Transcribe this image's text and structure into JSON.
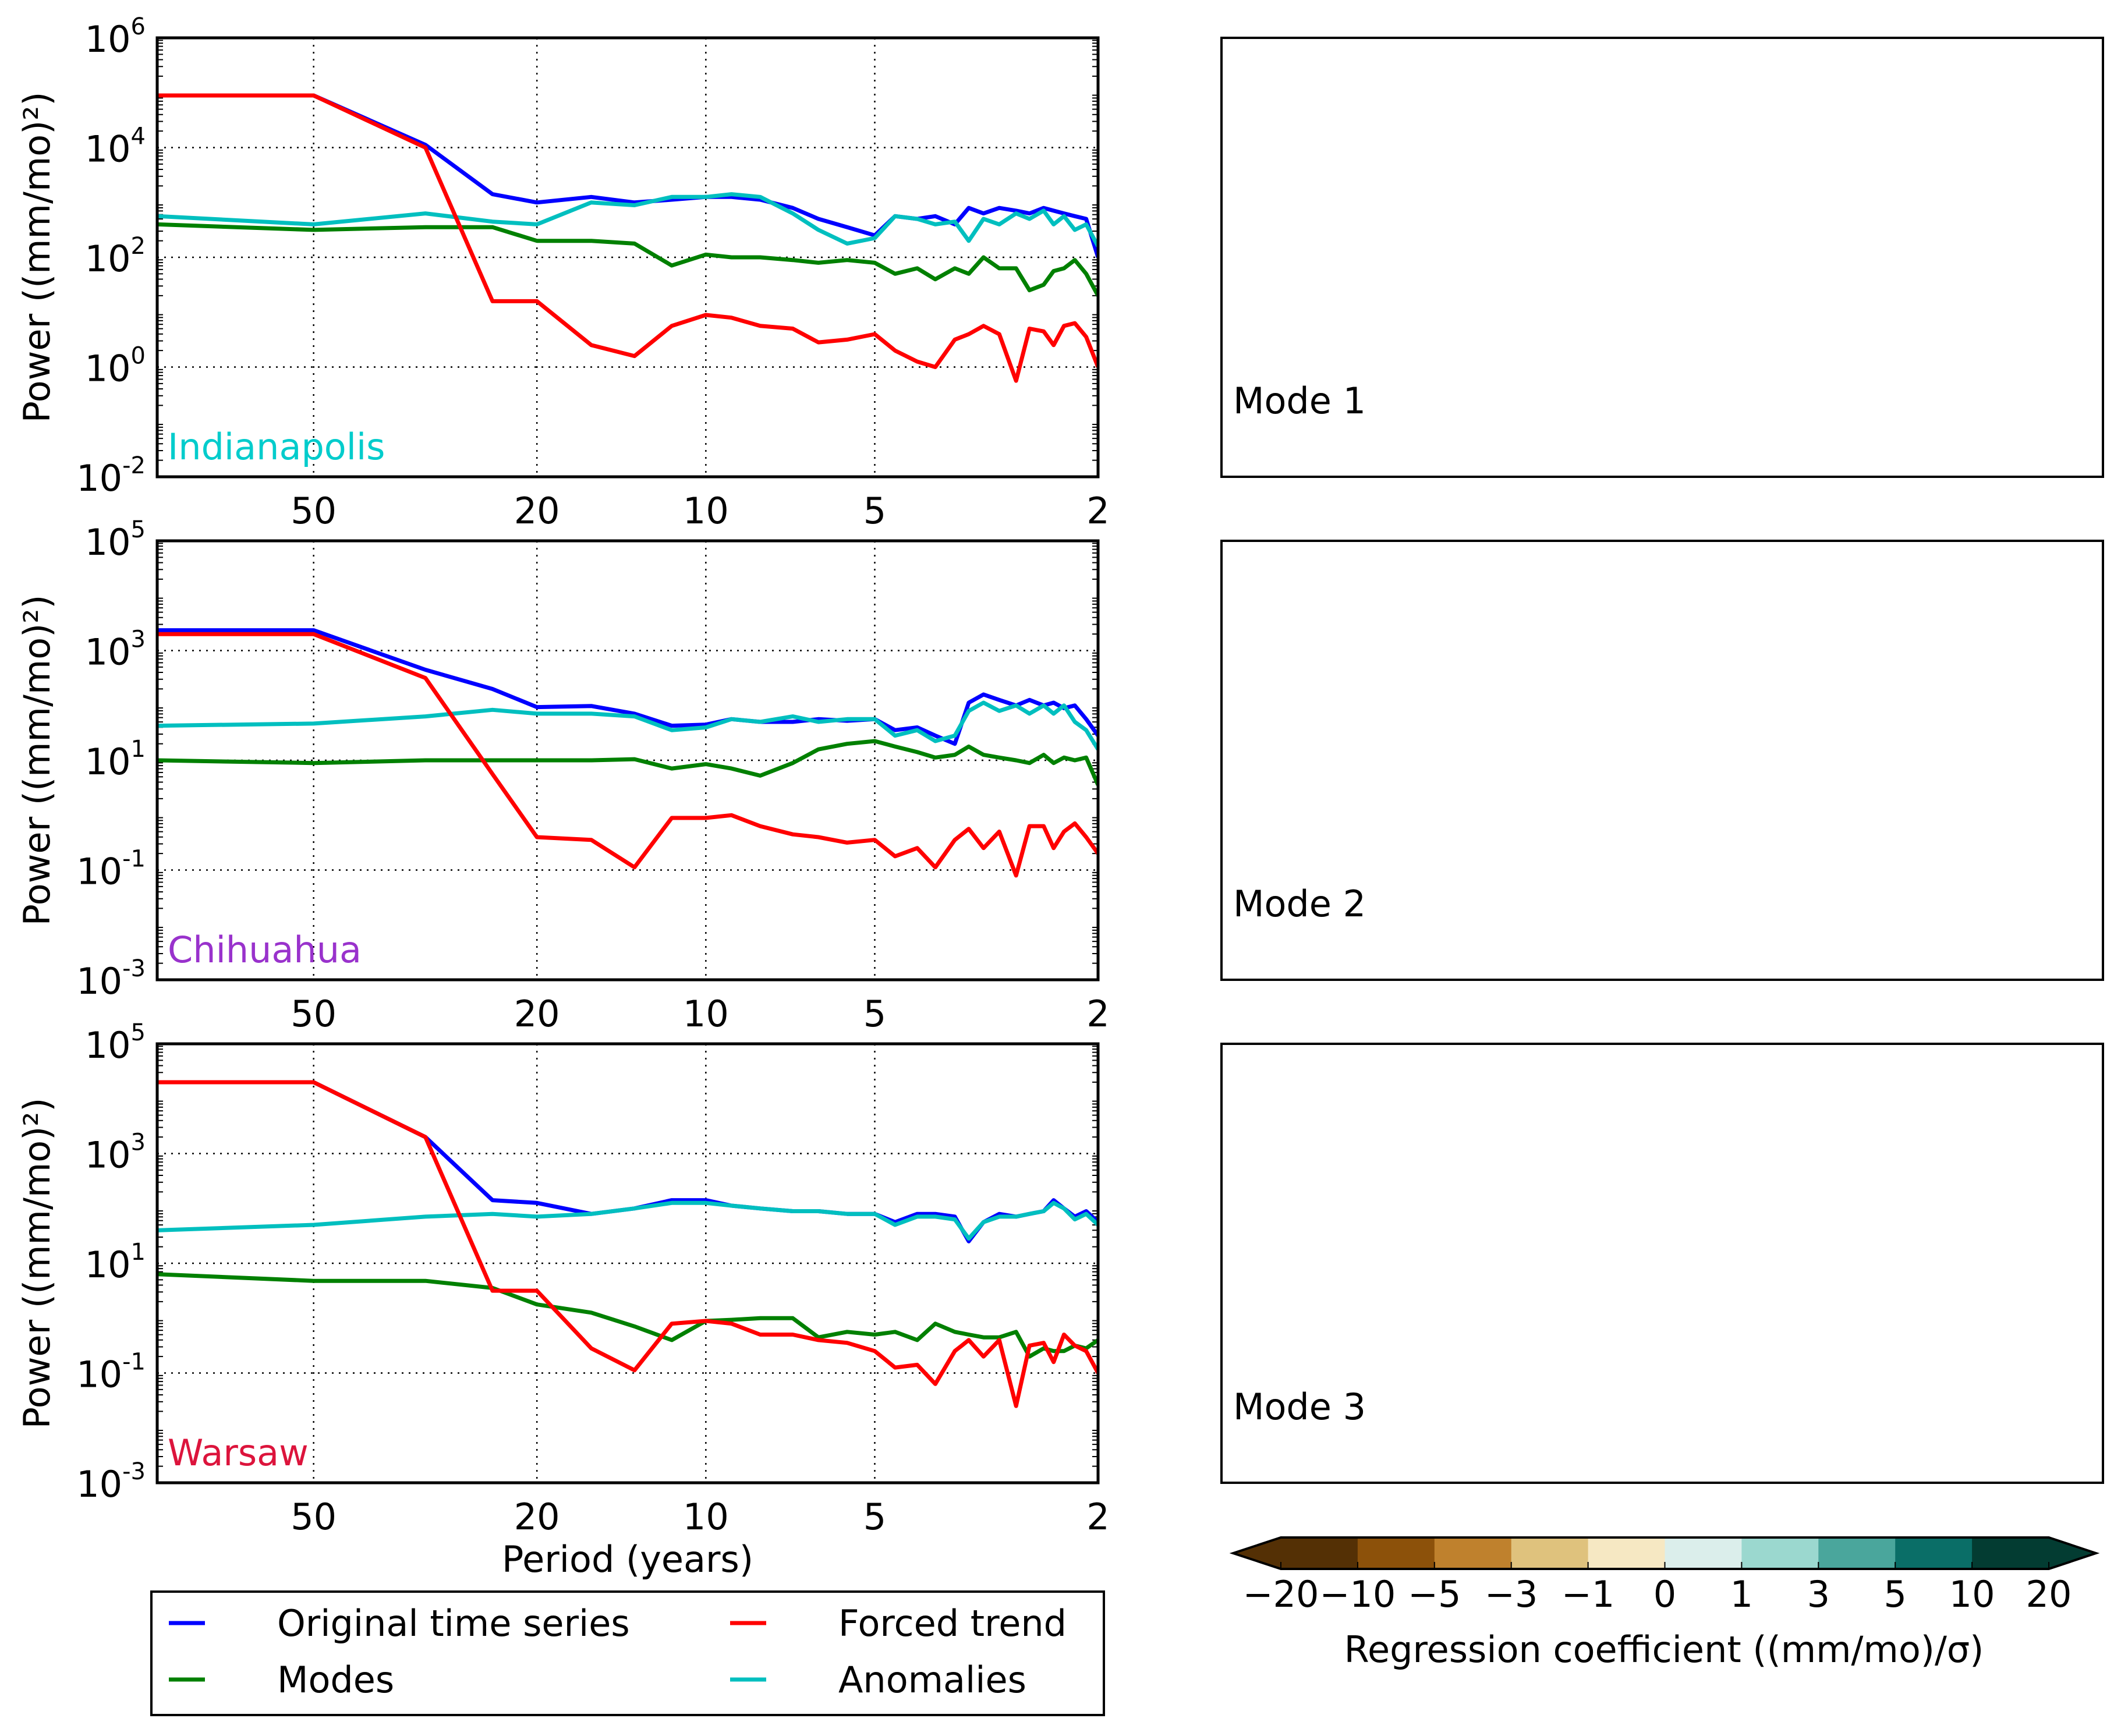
{
  "tick_base": "10",
  "xlabel": "Period (years)",
  "legend": [
    {
      "label": "Original time series",
      "color": "#0000ff"
    },
    {
      "label": "Forced trend",
      "color": "#ff0000"
    },
    {
      "label": "Modes",
      "color": "#008000"
    },
    {
      "label": "Anomalies",
      "color": "#00bfbf"
    }
  ],
  "maps": [
    {
      "label": "Mode 1"
    },
    {
      "label": "Mode 2"
    },
    {
      "label": "Mode 3"
    }
  ],
  "stars": {
    "Warsaw": "#dc143c",
    "Indianapolis": "#00ced1",
    "Chihuahua": "#9932cc"
  },
  "colorbar": {
    "label": "Regression coefficient ((mm/mo)/σ)",
    "ticks": [
      "−20",
      "−10",
      "−5",
      "−3",
      "−1",
      "0",
      "1",
      "3",
      "5",
      "10",
      "20"
    ],
    "colors": [
      "#543005",
      "#8c510a",
      "#bf812d",
      "#dfc27d",
      "#f6e8c3",
      "#dbeeeb",
      "#9bd8cf",
      "#4aa69c",
      "#0a6e67",
      "#033c32"
    ]
  },
  "chart_data": [
    {
      "type": "line",
      "title": "Indianapolis",
      "title_color": "#00cccc",
      "xlabel": "Period (years)",
      "ylabel": "Power ((mm/mo)²)",
      "xscale": "log",
      "yscale": "log",
      "xlim": [
        95,
        2
      ],
      "ylim_log10": [
        -2,
        6
      ],
      "xticks": [
        "50",
        "20",
        "10",
        "5",
        "2"
      ],
      "yticks_exp": [
        "6",
        "4",
        "2",
        "0",
        "-2"
      ],
      "x": [
        95,
        50,
        31.6,
        24,
        20,
        16,
        13.4,
        11.5,
        10,
        9,
        8,
        7,
        6.3,
        5.6,
        5,
        4.6,
        4.2,
        3.9,
        3.6,
        3.4,
        3.2,
        3,
        2.8,
        2.65,
        2.5,
        2.4,
        2.3,
        2.2,
        2.1,
        2
      ],
      "series": [
        {
          "name": "Original time series",
          "color": "#0000ff",
          "values_log10": [
            4.95,
            4.95,
            4.05,
            3.15,
            3.0,
            3.1,
            3.0,
            3.05,
            3.1,
            3.1,
            3.05,
            2.9,
            2.7,
            2.55,
            2.4,
            2.75,
            2.7,
            2.75,
            2.6,
            2.9,
            2.8,
            2.9,
            2.85,
            2.8,
            2.9,
            2.85,
            2.8,
            2.75,
            2.7,
            2.0
          ]
        },
        {
          "name": "Anomalies",
          "color": "#00bfbf",
          "values_log10": [
            2.75,
            2.6,
            2.8,
            2.65,
            2.6,
            3.0,
            2.95,
            3.1,
            3.1,
            3.15,
            3.1,
            2.8,
            2.5,
            2.25,
            2.35,
            2.75,
            2.7,
            2.6,
            2.65,
            2.3,
            2.7,
            2.6,
            2.8,
            2.7,
            2.85,
            2.6,
            2.75,
            2.5,
            2.6,
            2.2
          ]
        },
        {
          "name": "Modes",
          "color": "#008000",
          "values_log10": [
            2.6,
            2.5,
            2.55,
            2.55,
            2.3,
            2.3,
            2.25,
            1.85,
            2.05,
            2.0,
            2.0,
            1.95,
            1.9,
            1.95,
            1.9,
            1.7,
            1.8,
            1.6,
            1.8,
            1.7,
            2.0,
            1.8,
            1.8,
            1.4,
            1.5,
            1.75,
            1.8,
            1.95,
            1.7,
            1.3
          ]
        },
        {
          "name": "Forced trend",
          "color": "#ff0000",
          "values_log10": [
            4.95,
            4.95,
            4.0,
            1.2,
            1.2,
            0.4,
            0.2,
            0.75,
            0.95,
            0.9,
            0.75,
            0.7,
            0.45,
            0.5,
            0.6,
            0.3,
            0.1,
            0.0,
            0.5,
            0.6,
            0.75,
            0.6,
            -0.25,
            0.7,
            0.65,
            0.4,
            0.75,
            0.8,
            0.55,
            0.0
          ]
        }
      ]
    },
    {
      "type": "line",
      "title": "Chihuahua",
      "title_color": "#9932cc",
      "xlabel": "Period (years)",
      "ylabel": "Power ((mm/mo)²)",
      "xscale": "log",
      "yscale": "log",
      "xlim": [
        95,
        2
      ],
      "ylim_log10": [
        -3,
        5
      ],
      "xticks": [
        "50",
        "20",
        "10",
        "5",
        "2"
      ],
      "yticks_exp": [
        "5",
        "3",
        "1",
        "-1",
        "-3"
      ],
      "x": [
        95,
        50,
        31.6,
        24,
        20,
        16,
        13.4,
        11.5,
        10,
        9,
        8,
        7,
        6.3,
        5.6,
        5,
        4.6,
        4.2,
        3.9,
        3.6,
        3.4,
        3.2,
        3,
        2.8,
        2.65,
        2.5,
        2.4,
        2.3,
        2.2,
        2.1,
        2
      ],
      "series": [
        {
          "name": "Original time series",
          "color": "#0000ff",
          "values_log10": [
            3.37,
            3.37,
            2.65,
            2.3,
            1.97,
            1.99,
            1.85,
            1.63,
            1.65,
            1.75,
            1.7,
            1.7,
            1.75,
            1.72,
            1.75,
            1.55,
            1.6,
            1.45,
            1.3,
            2.05,
            2.2,
            2.1,
            2.0,
            2.1,
            2.0,
            2.05,
            1.95,
            2.0,
            1.75,
            1.45
          ]
        },
        {
          "name": "Anomalies",
          "color": "#00bfbf",
          "values_log10": [
            1.63,
            1.67,
            1.8,
            1.92,
            1.85,
            1.85,
            1.8,
            1.55,
            1.6,
            1.75,
            1.7,
            1.8,
            1.7,
            1.75,
            1.75,
            1.45,
            1.55,
            1.35,
            1.45,
            1.9,
            2.05,
            1.9,
            2.0,
            1.85,
            2.0,
            1.85,
            2.0,
            1.7,
            1.55,
            1.2
          ]
        },
        {
          "name": "Modes",
          "color": "#008000",
          "values_log10": [
            1.0,
            0.95,
            1.0,
            1.0,
            1.0,
            1.0,
            1.02,
            0.85,
            0.93,
            0.85,
            0.72,
            0.95,
            1.2,
            1.3,
            1.35,
            1.25,
            1.15,
            1.05,
            1.1,
            1.25,
            1.1,
            1.05,
            1.0,
            0.95,
            1.1,
            0.95,
            1.05,
            1.0,
            1.05,
            0.55
          ]
        },
        {
          "name": "Forced trend",
          "color": "#ff0000",
          "values_log10": [
            3.3,
            3.3,
            2.5,
            0.75,
            -0.4,
            -0.45,
            -0.95,
            -0.05,
            -0.05,
            0.0,
            -0.2,
            -0.35,
            -0.4,
            -0.5,
            -0.45,
            -0.75,
            -0.6,
            -0.95,
            -0.45,
            -0.25,
            -0.6,
            -0.3,
            -1.1,
            -0.2,
            -0.2,
            -0.6,
            -0.3,
            -0.15,
            -0.4,
            -0.7
          ]
        }
      ]
    },
    {
      "type": "line",
      "title": "Warsaw",
      "title_color": "#dc143c",
      "xlabel": "Period (years)",
      "ylabel": "Power ((mm/mo)²)",
      "xscale": "log",
      "yscale": "log",
      "xlim": [
        95,
        2
      ],
      "ylim_log10": [
        -3,
        5
      ],
      "xticks": [
        "50",
        "20",
        "10",
        "5",
        "2"
      ],
      "yticks_exp": [
        "5",
        "3",
        "1",
        "-1",
        "-3"
      ],
      "x": [
        95,
        50,
        31.6,
        24,
        20,
        16,
        13.4,
        11.5,
        10,
        9,
        8,
        7,
        6.3,
        5.6,
        5,
        4.6,
        4.2,
        3.9,
        3.6,
        3.4,
        3.2,
        3,
        2.8,
        2.65,
        2.5,
        2.4,
        2.3,
        2.2,
        2.1,
        2
      ],
      "series": [
        {
          "name": "Original time series",
          "color": "#0000ff",
          "values_log10": [
            4.3,
            4.3,
            3.3,
            2.15,
            2.1,
            1.9,
            2.0,
            2.15,
            2.15,
            2.05,
            2.0,
            1.95,
            1.95,
            1.9,
            1.9,
            1.75,
            1.9,
            1.9,
            1.85,
            1.4,
            1.75,
            1.9,
            1.85,
            1.9,
            1.95,
            2.15,
            2.0,
            1.85,
            1.95,
            1.75
          ]
        },
        {
          "name": "Anomalies",
          "color": "#00bfbf",
          "values_log10": [
            1.6,
            1.7,
            1.85,
            1.9,
            1.85,
            1.9,
            2.0,
            2.1,
            2.1,
            2.05,
            2.0,
            1.95,
            1.95,
            1.9,
            1.9,
            1.7,
            1.85,
            1.85,
            1.8,
            1.45,
            1.75,
            1.85,
            1.85,
            1.9,
            1.95,
            2.1,
            2.0,
            1.8,
            1.9,
            1.7
          ]
        },
        {
          "name": "Modes",
          "color": "#008000",
          "values_log10": [
            0.8,
            0.68,
            0.68,
            0.55,
            0.25,
            0.1,
            -0.15,
            -0.4,
            -0.05,
            -0.03,
            0.0,
            0.0,
            -0.35,
            -0.25,
            -0.3,
            -0.25,
            -0.4,
            -0.1,
            -0.25,
            -0.3,
            -0.35,
            -0.35,
            -0.25,
            -0.7,
            -0.55,
            -0.6,
            -0.6,
            -0.5,
            -0.55,
            -0.4
          ]
        },
        {
          "name": "Forced trend",
          "color": "#ff0000",
          "values_log10": [
            4.3,
            4.3,
            3.3,
            0.5,
            0.5,
            -0.55,
            -0.95,
            -0.1,
            -0.05,
            -0.1,
            -0.3,
            -0.3,
            -0.4,
            -0.45,
            -0.6,
            -0.9,
            -0.85,
            -1.2,
            -0.6,
            -0.4,
            -0.7,
            -0.4,
            -1.6,
            -0.5,
            -0.45,
            -0.8,
            -0.3,
            -0.5,
            -0.6,
            -1.0
          ]
        }
      ]
    }
  ]
}
